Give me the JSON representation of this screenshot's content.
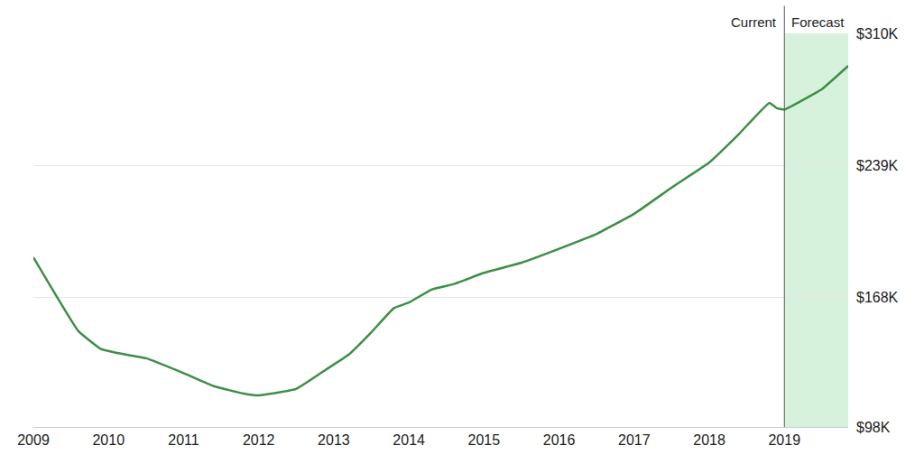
{
  "chart_data": {
    "type": "line",
    "x": [
      2009,
      2009.6,
      2009.9,
      2010.1,
      2010.5,
      2011.0,
      2011.4,
      2011.8,
      2012.0,
      2012.5,
      2012.9,
      2013.2,
      2013.5,
      2013.8,
      2014.0,
      2014.3,
      2014.6,
      2015.0,
      2015.5,
      2016.0,
      2016.5,
      2017.0,
      2017.5,
      2018.0,
      2018.4,
      2018.8,
      2018.9,
      2019.0,
      2019.5,
      2019.85
    ],
    "values": [
      189400,
      149600,
      140000,
      138000,
      135000,
      127000,
      120000,
      116000,
      115000,
      118500,
      129000,
      137000,
      149000,
      162000,
      165000,
      172000,
      175000,
      181000,
      186500,
      194000,
      202000,
      212800,
      227000,
      240500,
      256000,
      272600,
      269700,
      269000,
      280000,
      292500
    ],
    "color": "#3d8f45",
    "xlim": [
      2009,
      2019.85
    ],
    "xticks": [
      2009,
      2010,
      2011,
      2012,
      2013,
      2014,
      2015,
      2016,
      2017,
      2018,
      2019
    ],
    "ylim": [
      98000,
      310000
    ],
    "yticks": [
      {
        "value": 98000,
        "label": "$98K"
      },
      {
        "value": 168000,
        "label": "$168K"
      },
      {
        "value": 239000,
        "label": "$239K"
      },
      {
        "value": 310000,
        "label": "$310K"
      }
    ],
    "grid": true,
    "forecast_start": 2019,
    "annotations": [
      "Current",
      "Forecast"
    ]
  }
}
